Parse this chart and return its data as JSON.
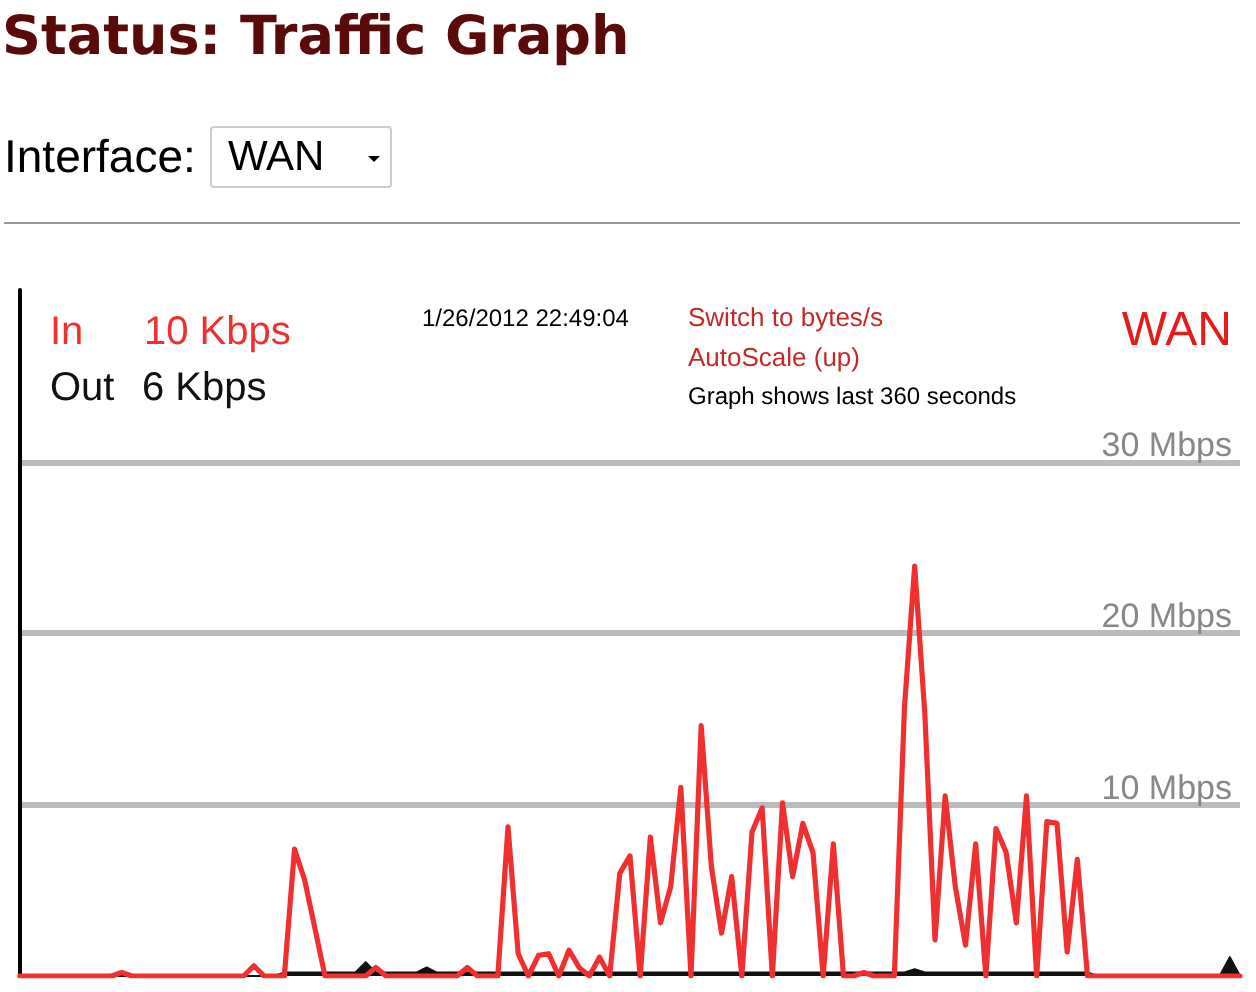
{
  "chart_data": {
    "type": "line",
    "title": "Status: Traffic Graph",
    "annotations": [
      "Interface:",
      "WAN",
      "10 Kbps",
      "6 Kbps",
      "1/26/2012 22:49:04",
      "Switch to bytes/s",
      "AutoScale (up)",
      "Graph shows last 360 seconds",
      "WAN"
    ],
    "categories": [
      null,
      null,
      null,
      null,
      null,
      null,
      null,
      null,
      null,
      null,
      null,
      null,
      null,
      null,
      null,
      null,
      null,
      null,
      null,
      null,
      null,
      null,
      null,
      null,
      null,
      null,
      null,
      null,
      null,
      null,
      null,
      null,
      null,
      null,
      null,
      null,
      null,
      null,
      null,
      null,
      null,
      null,
      null,
      null,
      null,
      null,
      null,
      null,
      null,
      null,
      null,
      null,
      null,
      null,
      null,
      null,
      null,
      null,
      null,
      null,
      null,
      null,
      null,
      null,
      null,
      null,
      null,
      null,
      null,
      null,
      null,
      null,
      null,
      null,
      null,
      null,
      null,
      null,
      null,
      null,
      null,
      null,
      null,
      null,
      null,
      null,
      null,
      null,
      null,
      null,
      null,
      null,
      null,
      null,
      null,
      null,
      null,
      null,
      null,
      null,
      null,
      null,
      null,
      null,
      null,
      null,
      null,
      null,
      null,
      null,
      null,
      null,
      null,
      null,
      null,
      null,
      null,
      null,
      null,
      null,
      null
    ],
    "series": [
      {
        "name": "In",
        "type": "line",
        "color": "#f03030",
        "values": [
          0,
          0,
          0,
          0,
          0,
          0,
          0,
          0,
          0,
          0,
          0.2,
          0,
          0,
          0,
          0,
          0,
          0,
          0,
          0,
          0,
          0,
          0,
          0,
          0.6,
          0,
          0,
          0,
          7.4,
          5.6,
          2.8,
          0,
          0,
          0,
          0,
          0,
          0.5,
          0,
          0,
          0,
          0,
          0,
          0,
          0,
          0,
          0.5,
          0,
          0,
          0,
          8.7,
          1.3,
          0,
          1.2,
          1.3,
          0,
          1.5,
          0.5,
          0,
          1.1,
          0,
          6,
          7,
          0,
          8.1,
          3.1,
          5.2,
          11,
          0,
          14.6,
          6.4,
          2.5,
          5.8,
          0,
          8.4,
          9.8,
          0,
          10.1,
          5.8,
          8.9,
          7.2,
          0,
          7.7,
          0,
          0,
          0.2,
          0,
          0,
          0,
          15.7,
          23.9,
          15.3,
          2.1,
          10.5,
          5.2,
          1.8,
          7.7,
          0,
          8.6,
          7.2,
          3.1,
          10.5,
          0,
          9,
          8.9,
          1.4,
          6.8,
          0,
          0,
          0,
          0,
          0,
          0,
          0,
          0,
          0,
          0,
          0,
          0,
          0,
          0,
          0,
          0
        ]
      },
      {
        "name": "Out",
        "type": "area",
        "color": "#111111",
        "values": [
          0,
          0,
          0,
          0,
          0,
          0,
          0,
          0,
          0,
          0,
          0,
          0,
          0,
          0,
          0,
          0,
          0,
          0,
          0,
          0,
          0,
          0,
          0,
          0,
          0,
          0,
          0.2,
          0.2,
          0.2,
          0.2,
          0.2,
          0.2,
          0.2,
          0.2,
          0.8,
          0.2,
          0.2,
          0.2,
          0.2,
          0.2,
          0.5,
          0.2,
          0.2,
          0.2,
          0.2,
          0.2,
          0.2,
          0.2,
          0.2,
          0.2,
          0.2,
          0.2,
          0.2,
          0.2,
          0.2,
          0.2,
          0.2,
          0.2,
          0.2,
          0.2,
          0.2,
          0.2,
          0.2,
          0.2,
          0.2,
          0.2,
          0.2,
          0.2,
          0.2,
          0.2,
          0.2,
          0.2,
          0.2,
          0.2,
          0.2,
          0.2,
          0.2,
          0.2,
          0.2,
          0.2,
          0.2,
          0.2,
          0.2,
          0.2,
          0.2,
          0.2,
          0.2,
          0.2,
          0.4,
          0.2,
          0.2,
          0.2,
          0.2,
          0.2,
          0.2,
          0.2,
          0.2,
          0.2,
          0.2,
          0.2,
          0.2,
          0.2,
          0.2,
          0.2,
          0.2,
          0.2,
          0,
          0,
          0,
          0,
          0,
          0,
          0,
          0,
          0,
          0,
          0,
          0,
          0,
          1.1,
          0
        ]
      }
    ],
    "ylim": [
      0,
      40
    ],
    "yticks": [
      {
        "value": 10,
        "label": "10 Mbps"
      },
      {
        "value": 20,
        "label": "20 Mbps"
      },
      {
        "value": 30,
        "label": "30 Mbps"
      }
    ],
    "grid": "y",
    "tick_labels": "y",
    "legend": "top left",
    "marker": "none"
  }
}
